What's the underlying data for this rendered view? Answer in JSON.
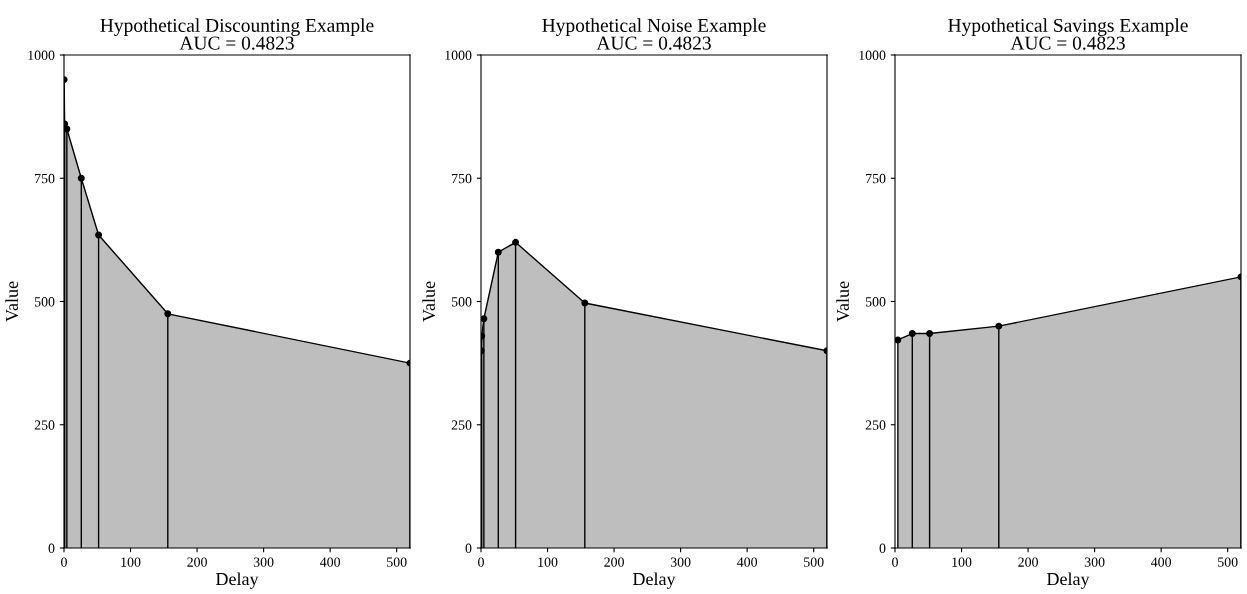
{
  "chart_data": [
    {
      "type": "area",
      "title": "Hypothetical Discounting Example\nAUC = 0.4823",
      "xlabel": "Delay",
      "ylabel": "Value",
      "x": [
        0.14,
        1,
        4.3,
        26,
        52,
        156,
        520
      ],
      "series": [
        {
          "color": "#bebebe",
          "values": [
            950,
            860,
            850,
            750,
            635,
            475,
            375
          ]
        },
        {
          "type": "lollipop",
          "color": "#000000",
          "marker": "circle",
          "values": [
            950,
            860,
            850,
            750,
            635,
            475,
            375
          ]
        }
      ],
      "xlim": [
        0,
        520
      ],
      "ylim": [
        0,
        1000
      ],
      "xticks": [
        0,
        100,
        200,
        300,
        400,
        500
      ],
      "yticks": [
        0,
        250,
        500,
        750,
        1000
      ],
      "grid": false
    },
    {
      "type": "area",
      "title": "Hypothetical Noise Example\nAUC = 0.4823",
      "xlabel": "Delay",
      "ylabel": "Value",
      "x": [
        0.14,
        1,
        4.3,
        26,
        52,
        156,
        520
      ],
      "series": [
        {
          "color": "#bebebe",
          "values": [
            400,
            430,
            465,
            600,
            620,
            497,
            400
          ]
        },
        {
          "type": "lollipop",
          "color": "#000000",
          "marker": "circle",
          "values": [
            400,
            430,
            465,
            600,
            620,
            497,
            400
          ]
        }
      ],
      "xlim": [
        0,
        520
      ],
      "ylim": [
        0,
        1000
      ],
      "xticks": [
        0,
        100,
        200,
        300,
        400,
        500
      ],
      "yticks": [
        0,
        250,
        500,
        750,
        1000
      ],
      "grid": false
    },
    {
      "type": "area",
      "title": "Hypothetical Savings Example\nAUC = 0.4823",
      "xlabel": "Delay",
      "ylabel": "Value",
      "x": [
        4.3,
        26,
        52,
        156,
        520
      ],
      "series": [
        {
          "color": "#bebebe",
          "values": [
            422,
            435,
            435,
            450,
            550
          ]
        },
        {
          "type": "lollipop",
          "color": "#000000",
          "marker": "circle",
          "values": [
            422,
            435,
            435,
            450,
            550
          ]
        }
      ],
      "xlim": [
        0,
        520
      ],
      "ylim": [
        0,
        1000
      ],
      "xticks": [
        0,
        100,
        200,
        300,
        400,
        500
      ],
      "yticks": [
        0,
        250,
        500,
        750,
        1000
      ],
      "grid": false
    }
  ]
}
